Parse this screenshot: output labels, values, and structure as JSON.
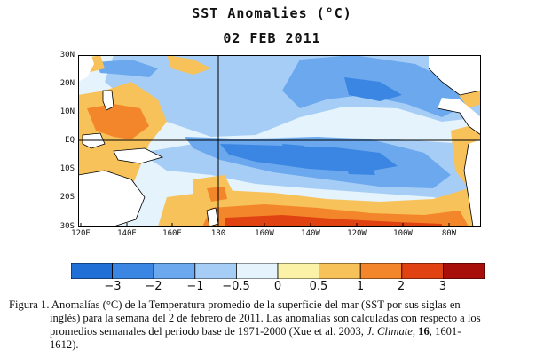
{
  "title": "SST Anomalies (°C)",
  "date": "02 FEB 2011",
  "map": {
    "y_ticks": [
      "30N",
      "20N",
      "10N",
      "EQ",
      "10S",
      "20S",
      "30S"
    ],
    "x_ticks": [
      "120E",
      "140E",
      "160E",
      "180",
      "160W",
      "140W",
      "120W",
      "100W",
      "80W"
    ],
    "colors": {
      "lt_m3": "#1f6fd6",
      "m3_m2": "#3a86e2",
      "m2_m1": "#6ba8ee",
      "m1_m05": "#a6cdf6",
      "m05_0": "#e4f3fc",
      "p0_05": "#fbf2a8",
      "p05_1": "#f7c25a",
      "p1_2": "#f3862a",
      "p2_3": "#e04212",
      "gt_3": "#a80f0a",
      "land": "#ffffff"
    }
  },
  "colorbar": {
    "colors": [
      "#1f6fd6",
      "#3a86e2",
      "#6ba8ee",
      "#a6cdf6",
      "#e4f3fc",
      "#fbf2a8",
      "#f7c25a",
      "#f3862a",
      "#e04212",
      "#a80f0a"
    ],
    "labels": [
      "−3",
      "−2",
      "−1",
      "−0.5",
      "0",
      "0.5",
      "1",
      "2",
      "3"
    ]
  },
  "caption": {
    "line1": "Figura 1. Anomalías (°C) de la Temperatura promedio de la superficie del mar (SST por sus siglas en",
    "line2": "inglés) para la semana del 2 de febrero de 2011.  Las anomalías son calculadas con respecto a los",
    "line3_a": "promedios semanales del periodo base de 1971-2000  (Xue et al. 2003, ",
    "line3_journal": "J. Climate",
    "line3_b": ", ",
    "line3_vol": "16",
    "line3_c": ", 1601-",
    "line4": "1612)."
  }
}
